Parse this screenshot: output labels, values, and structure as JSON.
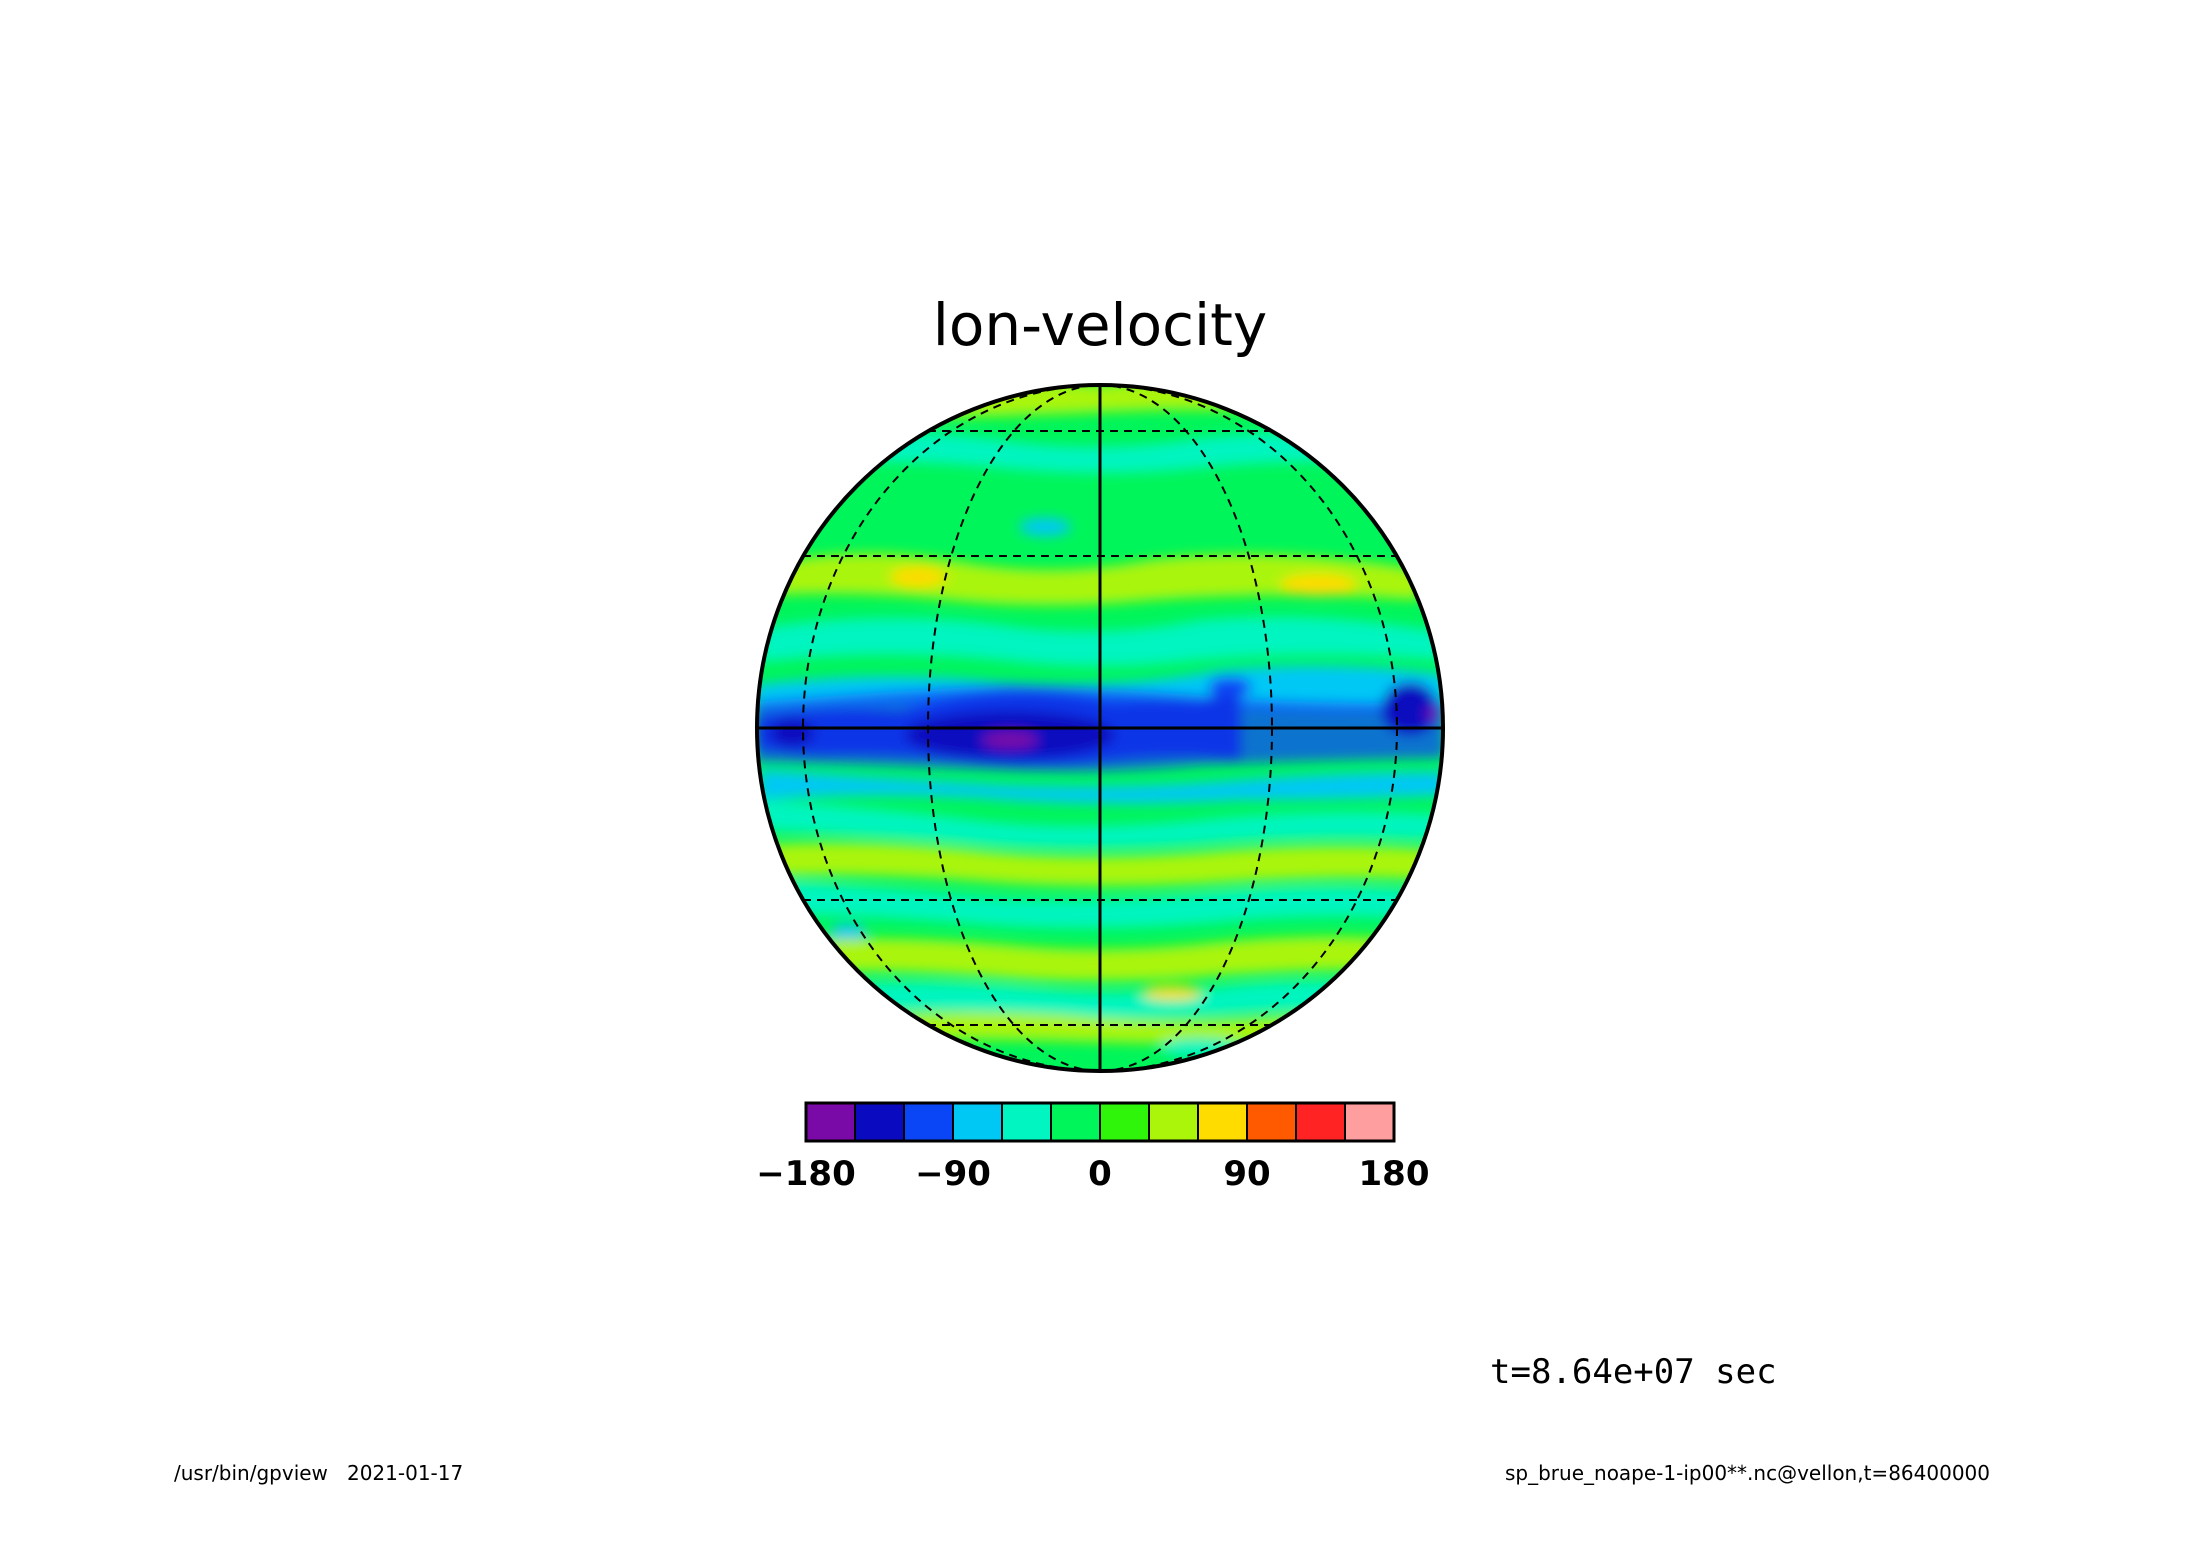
{
  "figure": {
    "title": "lon-velocity",
    "time_label": "t=8.64e+07 sec",
    "footer_left": "/usr/bin/gpview   2021-01-17",
    "footer_right": "sp_brue_noape-1-ip00**.nc@vellon,t=86400000"
  },
  "colorbar": {
    "colors": [
      "#7a0aa8",
      "#0a0ac0",
      "#0a46f5",
      "#00c8f5",
      "#00f5c0",
      "#00f55a",
      "#2ef50a",
      "#aaf50a",
      "#ffdc00",
      "#ff5a00",
      "#ff2323",
      "#ff9e9e"
    ],
    "tick_labels": [
      "−180",
      "−90",
      "0",
      "90",
      "180"
    ],
    "tick_values": [
      -180,
      -90,
      0,
      90,
      180
    ],
    "min": -180,
    "max": 180
  },
  "map": {
    "projection": "orthographic",
    "center_longitude": 0,
    "center_latitude": 0,
    "graticule_style": "dashed",
    "equator_and_central_meridian": "solid"
  }
}
